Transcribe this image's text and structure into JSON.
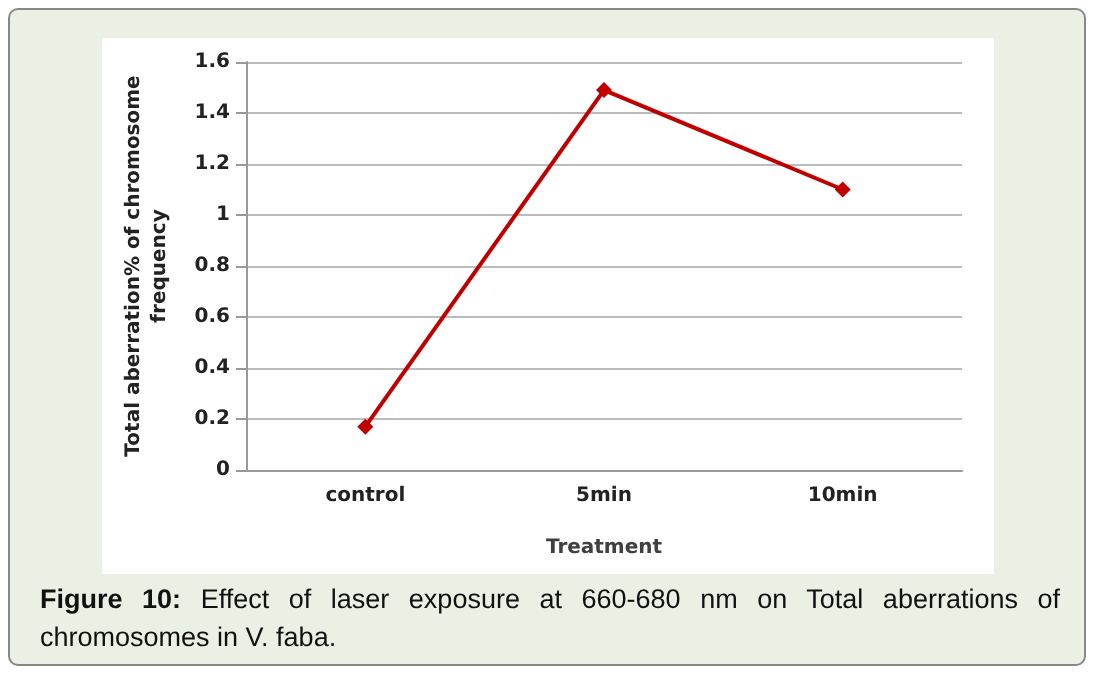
{
  "chart_data": {
    "type": "line",
    "xlabel": "Treatment",
    "ylabel": "Total aberration% of chromosome\nfrequency",
    "categories": [
      "control",
      "5min",
      "10min"
    ],
    "series": [
      {
        "color": "#c00000",
        "values": [
          0.17,
          1.49,
          1.1
        ]
      }
    ],
    "ylim": [
      0,
      1.6
    ],
    "yticks": [
      0,
      0.2,
      0.4,
      0.6,
      0.8,
      1,
      1.2,
      1.4,
      1.6
    ],
    "grid": "y",
    "marker": "diamond",
    "line_style": "solid",
    "annotations": [
      "Figure 10: Effect of laser exposure at 660-680 nm on Total aberrations of chromosomes in V. faba."
    ]
  }
}
